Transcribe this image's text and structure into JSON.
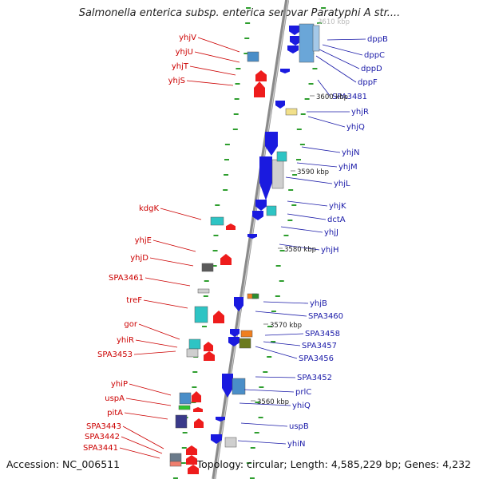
{
  "title": "Salmonella enterica subsp. enterica serovar Paratyphi A str....",
  "footer": {
    "accession": "Accession: NC_006511",
    "topology": "Topology: circular; Length: 4,585,229 bp; Genes: 4,232"
  },
  "colors": {
    "backbone": "#8a8a8a",
    "forward_gene": "#1a1adf",
    "reverse_gene": "#ee1c1c",
    "left_label": "#cc0000",
    "right_label": "#1a1aa8",
    "tick": "#2e9e2e"
  },
  "scale_labels": [
    "3600 kbp",
    "3590 kbp",
    "3580 kbp",
    "3570 kbp",
    "3560 kbp"
  ],
  "genes_left": [
    "yhjV",
    "yhjU",
    "yhjT",
    "yhjS",
    "kdgK",
    "yhjE",
    "yhjD",
    "SPA3461",
    "treF",
    "gor",
    "yhiR",
    "SPA3453",
    "yhiP",
    "uspA",
    "pitA",
    "SPA3443",
    "SPA3442",
    "SPA3441"
  ],
  "genes_right": [
    "dppB",
    "dppC",
    "dppD",
    "dppF",
    "SPA3481",
    "yhjR",
    "yhjQ",
    "yhjN",
    "yhjM",
    "yhjL",
    "yhjK",
    "dctA",
    "yhjJ",
    "yhjH",
    "yhjB",
    "SPA3460",
    "SPA3458",
    "SPA3457",
    "SPA3456",
    "SPA3452",
    "prlC",
    "yhiQ",
    "uspB",
    "yhiN"
  ],
  "top_partial_label": "3610 kbp"
}
